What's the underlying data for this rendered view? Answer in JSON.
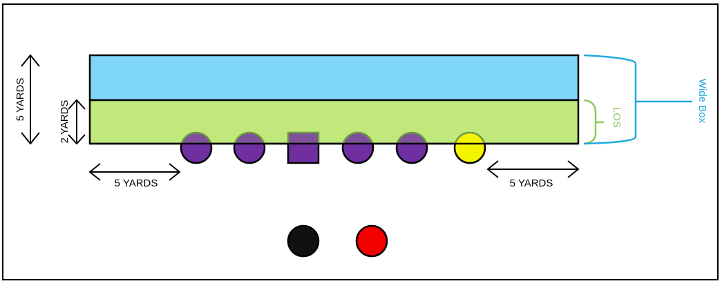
{
  "labels": {
    "five_yards_vertical": "5 YARDS",
    "two_yards_vertical": "2 YARDS",
    "five_yards_left": "5 YARDS",
    "five_yards_right": "5 YARDS",
    "los": "LOS",
    "wide_box": "Wide Box"
  },
  "colors": {
    "wide_box_zone": "#80d6f6",
    "los_zone": "#c0e87a",
    "wide_box_bracket": "#1eaadf",
    "los_bracket": "#8ec85a",
    "lineman": "#6f2fa1",
    "lineman_overlap": "#6e9a3e",
    "end_player": "#f4f400",
    "back_black": "#111111",
    "back_red": "#f50000",
    "outline": "#000000"
  },
  "players": {
    "line": [
      {
        "role": "tackle",
        "shape": "circle"
      },
      {
        "role": "guard",
        "shape": "circle"
      },
      {
        "role": "center",
        "shape": "square"
      },
      {
        "role": "guard",
        "shape": "circle"
      },
      {
        "role": "tackle",
        "shape": "circle"
      },
      {
        "role": "tight-end",
        "shape": "circle"
      }
    ],
    "backfield": [
      {
        "role": "back",
        "color": "black"
      },
      {
        "role": "back",
        "color": "red"
      }
    ]
  }
}
